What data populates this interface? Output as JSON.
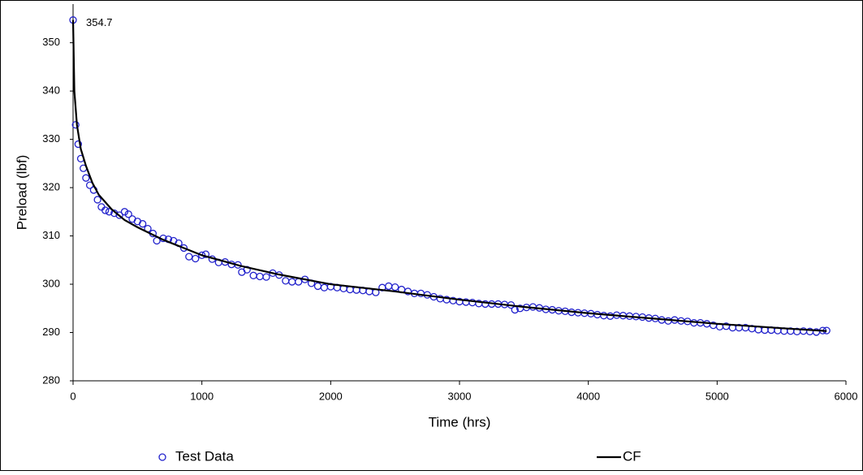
{
  "chart_data": {
    "type": "scatter",
    "xlabel": "Time (hrs)",
    "ylabel": "Preload (lbf)",
    "xlim": [
      0,
      6000
    ],
    "xticks": [
      0,
      1000,
      2000,
      3000,
      4000,
      5000,
      6000
    ],
    "ylim": [
      280,
      357
    ],
    "yticks": [
      280,
      290,
      300,
      310,
      320,
      330,
      340,
      350
    ],
    "grid": false,
    "legend": "bottom",
    "series": [
      {
        "name": "Test Data",
        "color": "#2222cc",
        "mode": "markers",
        "x": [
          0,
          20,
          40,
          60,
          80,
          100,
          130,
          160,
          190,
          220,
          250,
          280,
          320,
          360,
          400,
          430,
          460,
          500,
          540,
          580,
          620,
          650,
          700,
          740,
          780,
          820,
          860,
          900,
          950,
          1000,
          1030,
          1080,
          1130,
          1180,
          1230,
          1280,
          1310,
          1350,
          1400,
          1450,
          1500,
          1550,
          1600,
          1650,
          1700,
          1750,
          1800,
          1850,
          1900,
          1950,
          2000,
          2050,
          2100,
          2150,
          2200,
          2250,
          2300,
          2350,
          2400,
          2450,
          2500,
          2550,
          2600,
          2650,
          2700,
          2750,
          2800,
          2850,
          2900,
          2950,
          3000,
          3050,
          3100,
          3150,
          3200,
          3250,
          3300,
          3350,
          3400,
          3430,
          3470,
          3520,
          3570,
          3620,
          3670,
          3720,
          3770,
          3820,
          3870,
          3920,
          3970,
          4020,
          4070,
          4120,
          4170,
          4220,
          4270,
          4320,
          4370,
          4420,
          4470,
          4520,
          4570,
          4620,
          4670,
          4720,
          4770,
          4820,
          4870,
          4920,
          4970,
          5020,
          5070,
          5120,
          5170,
          5220,
          5270,
          5320,
          5370,
          5420,
          5470,
          5520,
          5570,
          5620,
          5670,
          5720,
          5770,
          5820,
          5850
        ],
        "values": [
          354.7,
          333,
          329,
          326,
          324,
          322,
          320.5,
          319.5,
          317.5,
          316,
          315.3,
          315,
          314.7,
          314.3,
          315,
          314.5,
          313.5,
          313,
          312.5,
          311.5,
          310.5,
          309,
          309.5,
          309.3,
          309,
          308.5,
          307.5,
          305.7,
          305.3,
          306,
          306.2,
          305.2,
          304.5,
          304.6,
          304.1,
          304,
          302.5,
          303,
          301.8,
          301.6,
          301.5,
          302.3,
          301.9,
          300.7,
          300.5,
          300.5,
          301,
          300.2,
          299.6,
          299.3,
          299.5,
          299.3,
          299.1,
          298.9,
          298.8,
          298.7,
          298.5,
          298.3,
          299.3,
          299.6,
          299.4,
          298.9,
          298.5,
          298.1,
          298.1,
          297.8,
          297.4,
          297,
          296.8,
          296.6,
          296.4,
          296.3,
          296.2,
          296,
          295.9,
          295.9,
          295.9,
          295.8,
          295.7,
          294.7,
          295,
          295.2,
          295.3,
          295.1,
          294.8,
          294.7,
          294.5,
          294.4,
          294.2,
          294.1,
          294,
          293.9,
          293.7,
          293.5,
          293.4,
          293.6,
          293.5,
          293.4,
          293.3,
          293.2,
          293,
          292.9,
          292.6,
          292.4,
          292.6,
          292.4,
          292.3,
          292,
          292,
          291.8,
          291.5,
          291.2,
          291.3,
          291,
          291,
          291,
          290.8,
          290.6,
          290.5,
          290.5,
          290.4,
          290.3,
          290.3,
          290.2,
          290.3,
          290.2,
          290.1,
          290.4,
          290.4
        ]
      },
      {
        "name": "CF",
        "color": "#000000",
        "mode": "line",
        "x": [
          0,
          10,
          30,
          60,
          100,
          150,
          200,
          300,
          400,
          500,
          700,
          1000,
          1300,
          1600,
          2000,
          2500,
          3000,
          3500,
          4000,
          4500,
          5000,
          5500,
          5850
        ],
        "values": [
          354.7,
          340,
          333,
          328,
          324.5,
          321,
          318.5,
          315.5,
          313.3,
          311.8,
          309.2,
          306,
          303.8,
          302,
          300,
          298.5,
          296.8,
          295.3,
          294,
          292.9,
          291.8,
          290.9,
          290.3
        ]
      }
    ]
  }
}
